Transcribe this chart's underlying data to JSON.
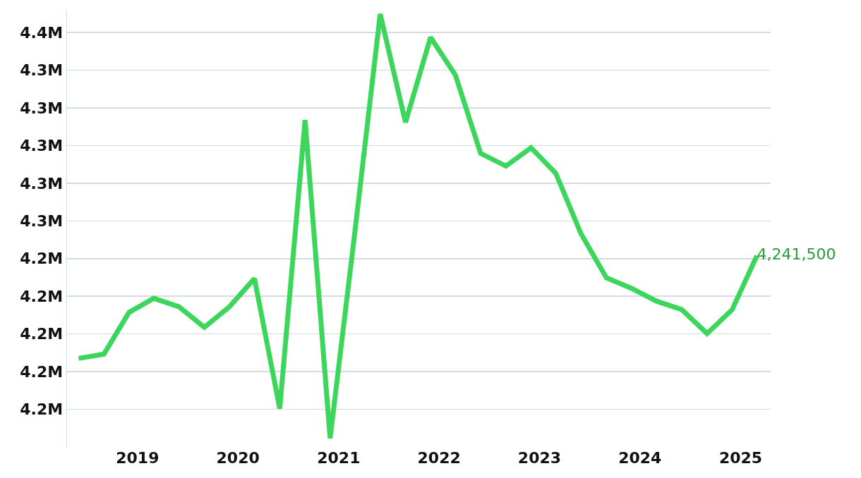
{
  "chart_data": {
    "type": "line",
    "x": [
      "2018-06",
      "2018-09",
      "2018-12",
      "2019-03",
      "2019-06",
      "2019-09",
      "2019-12",
      "2020-03",
      "2020-06",
      "2020-09",
      "2020-12",
      "2021-03",
      "2021-06",
      "2021-09",
      "2021-12",
      "2022-03",
      "2022-06",
      "2022-09",
      "2022-12",
      "2023-03",
      "2023-06",
      "2023-09",
      "2023-12",
      "2024-03",
      "2024-06",
      "2024-09",
      "2024-12",
      "2025-03"
    ],
    "series": [
      {
        "color": "#3dd65c",
        "values": [
          4187000,
          4189300,
          4211400,
          4218900,
          4214400,
          4203500,
          4214400,
          4229400,
          4160400,
          4313500,
          4144600,
          4254200,
          4369800,
          4312300,
          4357400,
          4337500,
          4295800,
          4289100,
          4298800,
          4285300,
          4253100,
          4229800,
          4224200,
          4217400,
          4212900,
          4200200,
          4212900,
          4241500
        ],
        "value_labels": [
          null,
          null,
          null,
          null,
          null,
          null,
          null,
          null,
          null,
          null,
          null,
          null,
          null,
          null,
          null,
          null,
          null,
          null,
          null,
          null,
          null,
          null,
          null,
          null,
          null,
          null,
          null,
          "4,241,500"
        ]
      }
    ],
    "xlim": [
      "2018-04-20",
      "2025-04-20"
    ],
    "xticks": [
      "2019",
      "2020",
      "2021",
      "2022",
      "2023",
      "2024",
      "2025"
    ],
    "ylim": [
      4140000,
      4372000
    ],
    "yticks": [
      {
        "value": 4160000,
        "label": "4.2M"
      },
      {
        "value": 4180000,
        "label": "4.2M"
      },
      {
        "value": 4200000,
        "label": "4.2M"
      },
      {
        "value": 4220000,
        "label": "4.2M"
      },
      {
        "value": 4240000,
        "label": "4.2M"
      },
      {
        "value": 4260000,
        "label": "4.3M"
      },
      {
        "value": 4280000,
        "label": "4.3M"
      },
      {
        "value": 4300000,
        "label": "4.3M"
      },
      {
        "value": 4320000,
        "label": "4.3M"
      },
      {
        "value": 4340000,
        "label": "4.3M"
      },
      {
        "value": 4360000,
        "label": "4.4M"
      }
    ],
    "grid": "y",
    "marker": "none",
    "line_style": "solid"
  }
}
